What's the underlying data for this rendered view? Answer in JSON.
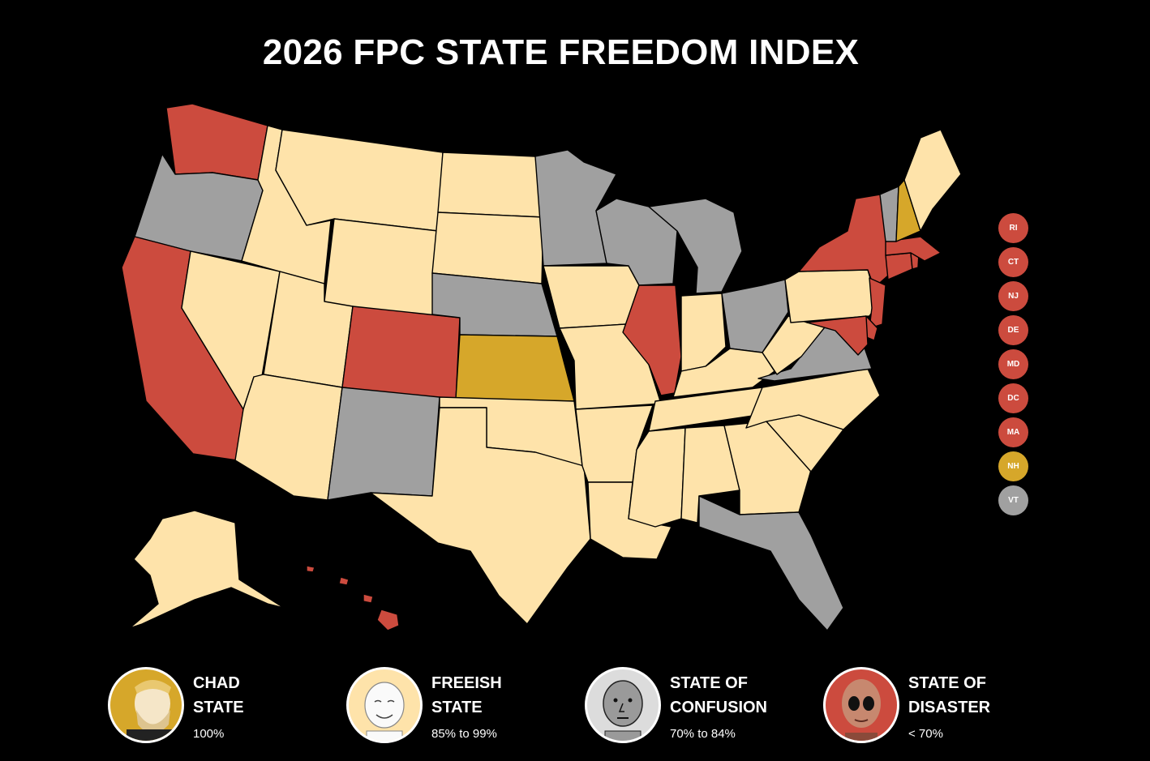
{
  "title": "2026 FPC STATE FREEDOM INDEX",
  "colors": {
    "chad": "#D6A72A",
    "freeish": "#FEE3AA",
    "confusion": "#A0A0A0",
    "disaster": "#CC4B3E",
    "background": "#000000"
  },
  "states": {
    "WA": "disaster",
    "OR": "confusion",
    "CA": "disaster",
    "NV": "freeish",
    "ID": "freeish",
    "MT": "freeish",
    "WY": "freeish",
    "UT": "freeish",
    "AZ": "freeish",
    "CO": "disaster",
    "NM": "confusion",
    "ND": "freeish",
    "SD": "freeish",
    "NE": "confusion",
    "KS": "chad",
    "OK": "freeish",
    "TX": "freeish",
    "MN": "confusion",
    "IA": "freeish",
    "MO": "freeish",
    "AR": "freeish",
    "LA": "freeish",
    "WI": "confusion",
    "IL": "disaster",
    "MI": "confusion",
    "IN": "freeish",
    "OH": "confusion",
    "KY": "freeish",
    "TN": "freeish",
    "MS": "freeish",
    "AL": "freeish",
    "GA": "freeish",
    "FL": "confusion",
    "SC": "freeish",
    "NC": "freeish",
    "VA": "confusion",
    "WV": "freeish",
    "PA": "freeish",
    "NY": "disaster",
    "NJ": "disaster",
    "DE": "disaster",
    "MD": "disaster",
    "CT": "disaster",
    "RI": "disaster",
    "MA": "disaster",
    "VT": "confusion",
    "NH": "chad",
    "ME": "freeish",
    "AK": "freeish",
    "HI": "disaster"
  },
  "small_states": [
    {
      "label": "RI",
      "category": "disaster"
    },
    {
      "label": "CT",
      "category": "disaster"
    },
    {
      "label": "NJ",
      "category": "disaster"
    },
    {
      "label": "DE",
      "category": "disaster"
    },
    {
      "label": "MD",
      "category": "disaster"
    },
    {
      "label": "DC",
      "category": "disaster"
    },
    {
      "label": "MA",
      "category": "disaster"
    },
    {
      "label": "NH",
      "category": "chad"
    },
    {
      "label": "VT",
      "category": "confusion"
    }
  ],
  "legend": [
    {
      "category": "chad",
      "line1": "CHAD",
      "line2": "STATE",
      "range": "100%"
    },
    {
      "category": "freeish",
      "line1": "FREEISH",
      "line2": "STATE",
      "range": "85% to 99%"
    },
    {
      "category": "confusion",
      "line1": "STATE OF",
      "line2": "CONFUSION",
      "range": "70% to 84%"
    },
    {
      "category": "disaster",
      "line1": "STATE OF",
      "line2": "DISASTER",
      "range": "< 70%"
    }
  ]
}
